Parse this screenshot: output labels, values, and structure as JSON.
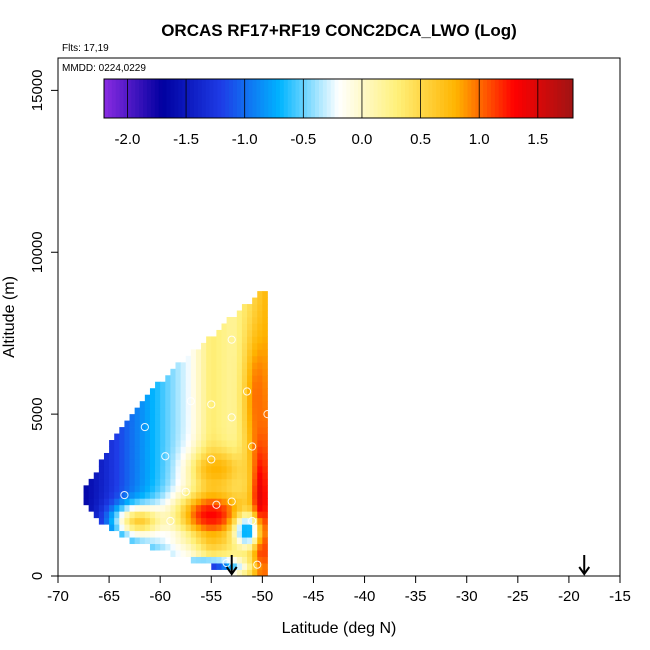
{
  "chart_data": {
    "type": "heatmap",
    "title": "ORCAS RF17+RF19 CONC2DCA_LWO (Log)",
    "flights_label": "Flts: 17,19",
    "dates_label": "MMDD: 0224,0229",
    "xlabel": "Latitude (deg N)",
    "ylabel": "Altitude (m)",
    "xlim": [
      -70,
      -15
    ],
    "ylim": [
      0,
      16000
    ],
    "x_ticks": [
      -70,
      -65,
      -60,
      -55,
      -50,
      -45,
      -40,
      -35,
      -30,
      -25,
      -20,
      -15
    ],
    "y_ticks": [
      0,
      5000,
      10000,
      15000
    ],
    "grid": false,
    "colorbar": {
      "range": [
        -2.2,
        1.8
      ],
      "ticks": [
        -2.0,
        -1.5,
        -1.0,
        -0.5,
        0.0,
        0.5,
        1.0,
        1.5
      ],
      "tick_labels": [
        "-2.0",
        "-1.5",
        "-1.0",
        "-0.5",
        "0.0",
        "0.5",
        "1.0",
        "1.5"
      ],
      "colors": [
        "#8a2be2",
        "#0000a0",
        "#1e3ce6",
        "#00b4ff",
        "#ffffff",
        "#fff07a",
        "#ffb400",
        "#ff0000",
        "#a01414"
      ],
      "placement": "top"
    },
    "cell_size": {
      "lat": 0.5,
      "alt": 200
    },
    "field_boundary": {
      "top_edge": [
        [
          -67.5,
          2500
        ],
        [
          -66,
          3300
        ],
        [
          -64,
          4500
        ],
        [
          -62,
          5200
        ],
        [
          -60,
          5900
        ],
        [
          -57,
          6800
        ],
        [
          -54,
          7600
        ],
        [
          -51.5,
          8300
        ],
        [
          -50,
          8700
        ]
      ],
      "right_lat": -49.7,
      "bottom_edge": [
        [
          -67.5,
          2400
        ],
        [
          -65.5,
          1700
        ],
        [
          -63,
          1200
        ],
        [
          -60,
          900
        ],
        [
          -57,
          600
        ],
        [
          -54,
          300
        ],
        [
          -51,
          0
        ]
      ]
    },
    "field_bands": [
      {
        "h": 0.0,
        "v": -2.0
      },
      {
        "h": 0.1,
        "v": -1.7
      },
      {
        "h": 0.25,
        "v": -1.2
      },
      {
        "h": 0.45,
        "v": -0.6
      },
      {
        "h": 0.58,
        "v": -0.2
      },
      {
        "h": 0.7,
        "v": 0.5
      },
      {
        "h": 0.82,
        "v": 0.3
      },
      {
        "h": 0.92,
        "v": 0.6
      },
      {
        "h": 1.0,
        "v": 1.0
      }
    ],
    "field_hotspots": [
      {
        "lat": -55,
        "alt": 1900,
        "v": 1.3,
        "r_lat": 3.5,
        "r_alt": 700
      },
      {
        "lat": -50.2,
        "alt": 2500,
        "v": 1.5,
        "r_lat": 0.8,
        "r_alt": 2500
      },
      {
        "lat": -50.5,
        "alt": 5500,
        "v": 1.0,
        "r_lat": 1.2,
        "r_alt": 2000
      },
      {
        "lat": -55,
        "alt": 300,
        "v": -1.2,
        "r_lat": 3,
        "r_alt": 250
      },
      {
        "lat": -51.5,
        "alt": 1400,
        "v": -0.8,
        "r_lat": 1.2,
        "r_alt": 500
      },
      {
        "lat": -62,
        "alt": 1700,
        "v": 0.6,
        "r_lat": 2.5,
        "r_alt": 500
      },
      {
        "lat": -54.5,
        "alt": 3300,
        "v": 0.8,
        "r_lat": 2.5,
        "r_alt": 600
      }
    ],
    "markers": [
      {
        "lat": -53.0,
        "alt": 7300
      },
      {
        "lat": -51.5,
        "alt": 5700
      },
      {
        "lat": -49.5,
        "alt": 5000
      },
      {
        "lat": -53.0,
        "alt": 4900
      },
      {
        "lat": -55.0,
        "alt": 5300
      },
      {
        "lat": -57.0,
        "alt": 5400
      },
      {
        "lat": -61.5,
        "alt": 4600
      },
      {
        "lat": -51.0,
        "alt": 4000
      },
      {
        "lat": -59.5,
        "alt": 3700
      },
      {
        "lat": -55.0,
        "alt": 3600
      },
      {
        "lat": -57.5,
        "alt": 2600
      },
      {
        "lat": -63.5,
        "alt": 2500
      },
      {
        "lat": -54.5,
        "alt": 2200
      },
      {
        "lat": -53.0,
        "alt": 2300
      },
      {
        "lat": -59.0,
        "alt": 1700
      },
      {
        "lat": -51.0,
        "alt": 1700
      },
      {
        "lat": -53.5,
        "alt": 400
      },
      {
        "lat": -50.5,
        "alt": 350
      }
    ],
    "arrows": [
      {
        "lat": -53.0
      },
      {
        "lat": -18.5
      }
    ]
  }
}
